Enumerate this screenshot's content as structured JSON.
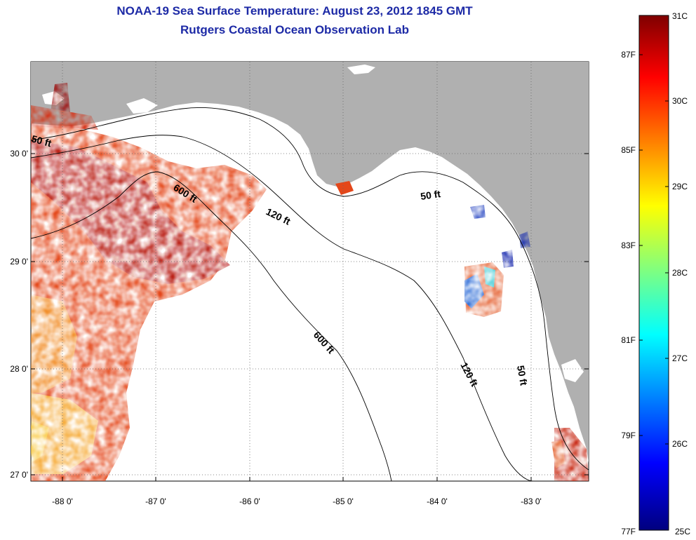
{
  "title": {
    "line1": "NOAA-19 Sea Surface Temperature:  August 23, 2012 1845 GMT",
    "line2": "Rutgers Coastal Ocean Observation Lab"
  },
  "map": {
    "lon_ticks": [
      "-88 0'",
      "-87 0'",
      "-86 0'",
      "-85 0'",
      "-84 0'",
      "-83 0'"
    ],
    "lat_ticks": [
      "30 0'",
      "29 0'",
      "28 0'",
      "27 0'"
    ],
    "contour_labels": [
      {
        "text": "50 ft"
      },
      {
        "text": "600 ft"
      },
      {
        "text": "120 ft"
      },
      {
        "text": "50 ft"
      },
      {
        "text": "600 ft"
      },
      {
        "text": "120 ft"
      },
      {
        "text": "50 ft"
      }
    ]
  },
  "colorbar": {
    "celsius": [
      "31C",
      "30C",
      "29C",
      "28C",
      "27C",
      "26C",
      "25C"
    ],
    "fahrenheit": [
      "87F",
      "85F",
      "83F",
      "81F",
      "79F",
      "77F"
    ]
  },
  "colors": {
    "title": "#1d2aa6",
    "land": "#b0b0b0",
    "ocean": "#ffffff"
  }
}
